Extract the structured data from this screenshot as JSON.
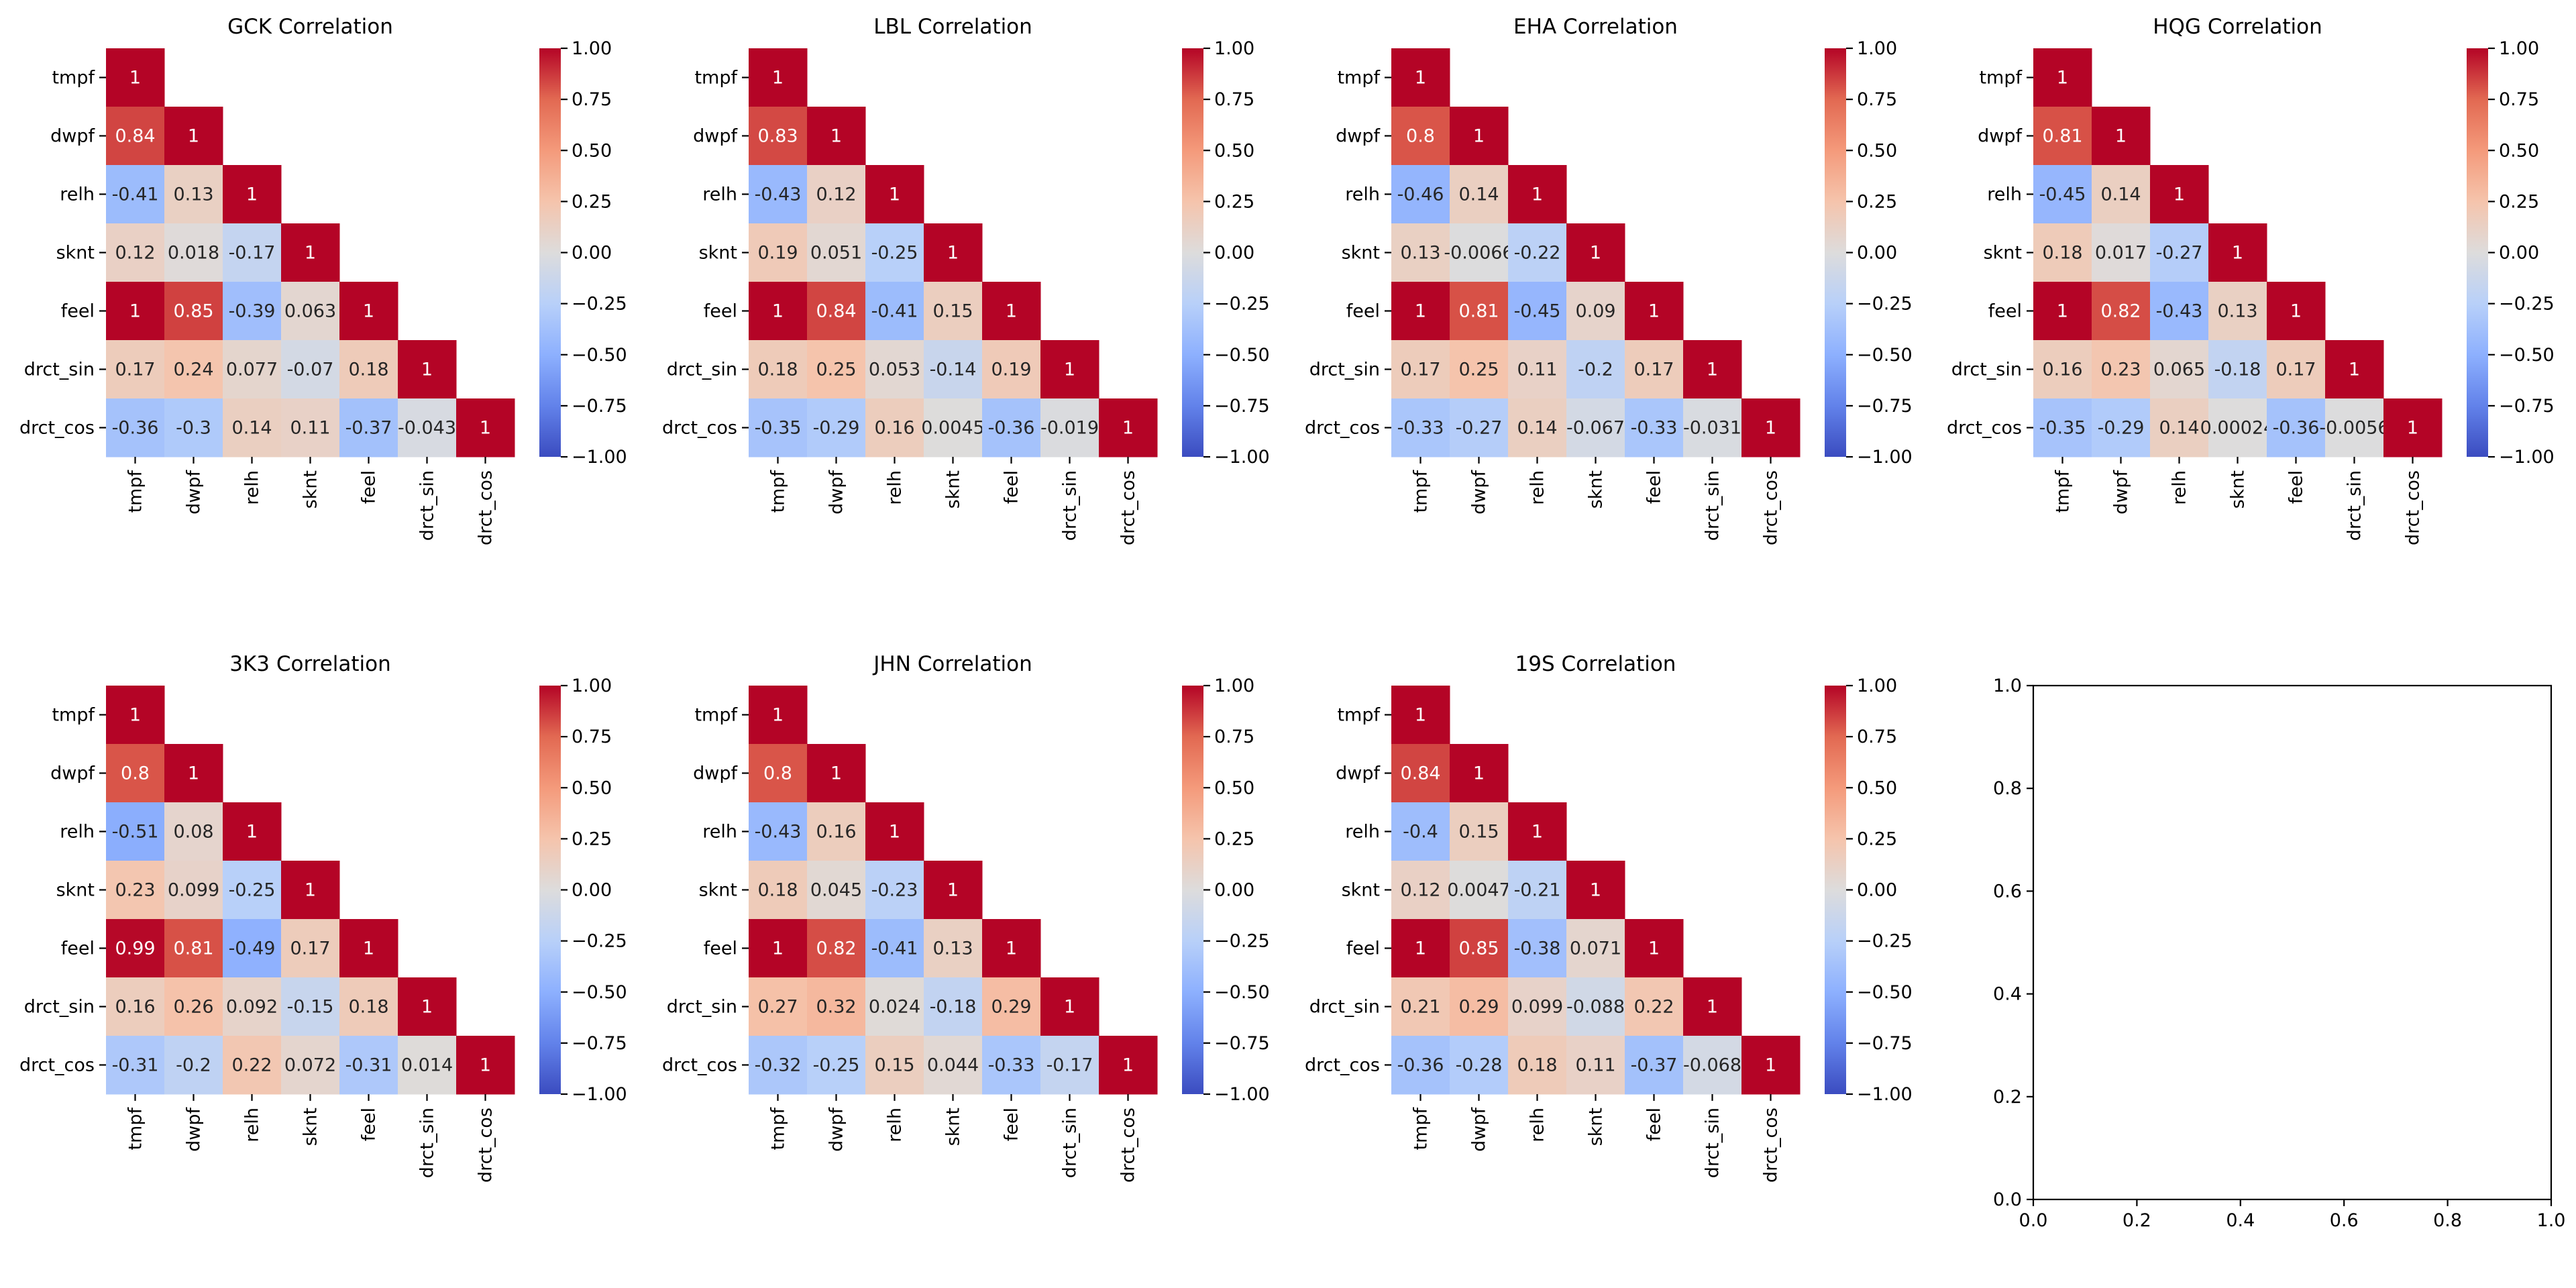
{
  "chart_data": [
    {
      "type": "heatmap",
      "title": "GCK Correlation",
      "categories": [
        "tmpf",
        "dwpf",
        "relh",
        "sknt",
        "feel",
        "drct_sin",
        "drct_cos"
      ],
      "mask": "upper-triangle",
      "matrix_lower": [
        [
          "1"
        ],
        [
          "0.84",
          "1"
        ],
        [
          "-0.41",
          "0.13",
          "1"
        ],
        [
          "0.12",
          "0.018",
          "-0.17",
          "1"
        ],
        [
          "1",
          "0.85",
          "-0.39",
          "0.063",
          "1"
        ],
        [
          "0.17",
          "0.24",
          "0.077",
          "-0.07",
          "0.18",
          "1"
        ],
        [
          "-0.36",
          "-0.3",
          "0.14",
          "0.11",
          "-0.37",
          "-0.043",
          "1"
        ]
      ],
      "colormap": "coolwarm",
      "vmin": -1,
      "vmax": 1,
      "colorbar_ticks": [
        "1.00",
        "0.75",
        "0.50",
        "0.25",
        "0.00",
        "−0.25",
        "−0.50",
        "−0.75",
        "−1.00"
      ]
    },
    {
      "type": "heatmap",
      "title": "LBL Correlation",
      "categories": [
        "tmpf",
        "dwpf",
        "relh",
        "sknt",
        "feel",
        "drct_sin",
        "drct_cos"
      ],
      "mask": "upper-triangle",
      "matrix_lower": [
        [
          "1"
        ],
        [
          "0.83",
          "1"
        ],
        [
          "-0.43",
          "0.12",
          "1"
        ],
        [
          "0.19",
          "0.051",
          "-0.25",
          "1"
        ],
        [
          "1",
          "0.84",
          "-0.41",
          "0.15",
          "1"
        ],
        [
          "0.18",
          "0.25",
          "0.053",
          "-0.14",
          "0.19",
          "1"
        ],
        [
          "-0.35",
          "-0.29",
          "0.16",
          "0.0045",
          "-0.36",
          "-0.019",
          "1"
        ]
      ],
      "colormap": "coolwarm",
      "vmin": -1,
      "vmax": 1,
      "colorbar_ticks": [
        "1.00",
        "0.75",
        "0.50",
        "0.25",
        "0.00",
        "−0.25",
        "−0.50",
        "−0.75",
        "−1.00"
      ]
    },
    {
      "type": "heatmap",
      "title": "EHA Correlation",
      "categories": [
        "tmpf",
        "dwpf",
        "relh",
        "sknt",
        "feel",
        "drct_sin",
        "drct_cos"
      ],
      "mask": "upper-triangle",
      "matrix_lower": [
        [
          "1"
        ],
        [
          "0.8",
          "1"
        ],
        [
          "-0.46",
          "0.14",
          "1"
        ],
        [
          "0.13",
          "-0.0066",
          "-0.22",
          "1"
        ],
        [
          "1",
          "0.81",
          "-0.45",
          "0.09",
          "1"
        ],
        [
          "0.17",
          "0.25",
          "0.11",
          "-0.2",
          "0.17",
          "1"
        ],
        [
          "-0.33",
          "-0.27",
          "0.14",
          "-0.067",
          "-0.33",
          "-0.031",
          "1"
        ]
      ],
      "colormap": "coolwarm",
      "vmin": -1,
      "vmax": 1,
      "colorbar_ticks": [
        "1.00",
        "0.75",
        "0.50",
        "0.25",
        "0.00",
        "−0.25",
        "−0.50",
        "−0.75",
        "−1.00"
      ]
    },
    {
      "type": "heatmap",
      "title": "HQG Correlation",
      "categories": [
        "tmpf",
        "dwpf",
        "relh",
        "sknt",
        "feel",
        "drct_sin",
        "drct_cos"
      ],
      "mask": "upper-triangle",
      "matrix_lower": [
        [
          "1"
        ],
        [
          "0.81",
          "1"
        ],
        [
          "-0.45",
          "0.14",
          "1"
        ],
        [
          "0.18",
          "0.017",
          "-0.27",
          "1"
        ],
        [
          "1",
          "0.82",
          "-0.43",
          "0.13",
          "1"
        ],
        [
          "0.16",
          "0.23",
          "0.065",
          "-0.18",
          "0.17",
          "1"
        ],
        [
          "-0.35",
          "-0.29",
          "0.14",
          "0.00024",
          "-0.36",
          "-0.0056",
          "1"
        ]
      ],
      "colormap": "coolwarm",
      "vmin": -1,
      "vmax": 1,
      "colorbar_ticks": [
        "1.00",
        "0.75",
        "0.50",
        "0.25",
        "0.00",
        "−0.25",
        "−0.50",
        "−0.75",
        "−1.00"
      ]
    },
    {
      "type": "heatmap",
      "title": "3K3 Correlation",
      "categories": [
        "tmpf",
        "dwpf",
        "relh",
        "sknt",
        "feel",
        "drct_sin",
        "drct_cos"
      ],
      "mask": "upper-triangle",
      "matrix_lower": [
        [
          "1"
        ],
        [
          "0.8",
          "1"
        ],
        [
          "-0.51",
          "0.08",
          "1"
        ],
        [
          "0.23",
          "0.099",
          "-0.25",
          "1"
        ],
        [
          "0.99",
          "0.81",
          "-0.49",
          "0.17",
          "1"
        ],
        [
          "0.16",
          "0.26",
          "0.092",
          "-0.15",
          "0.18",
          "1"
        ],
        [
          "-0.31",
          "-0.2",
          "0.22",
          "0.072",
          "-0.31",
          "0.014",
          "1"
        ]
      ],
      "colormap": "coolwarm",
      "vmin": -1,
      "vmax": 1,
      "colorbar_ticks": [
        "1.00",
        "0.75",
        "0.50",
        "0.25",
        "0.00",
        "−0.25",
        "−0.50",
        "−0.75",
        "−1.00"
      ]
    },
    {
      "type": "heatmap",
      "title": "JHN Correlation",
      "categories": [
        "tmpf",
        "dwpf",
        "relh",
        "sknt",
        "feel",
        "drct_sin",
        "drct_cos"
      ],
      "mask": "upper-triangle",
      "matrix_lower": [
        [
          "1"
        ],
        [
          "0.8",
          "1"
        ],
        [
          "-0.43",
          "0.16",
          "1"
        ],
        [
          "0.18",
          "0.045",
          "-0.23",
          "1"
        ],
        [
          "1",
          "0.82",
          "-0.41",
          "0.13",
          "1"
        ],
        [
          "0.27",
          "0.32",
          "0.024",
          "-0.18",
          "0.29",
          "1"
        ],
        [
          "-0.32",
          "-0.25",
          "0.15",
          "0.044",
          "-0.33",
          "-0.17",
          "1"
        ]
      ],
      "colormap": "coolwarm",
      "vmin": -1,
      "vmax": 1,
      "colorbar_ticks": [
        "1.00",
        "0.75",
        "0.50",
        "0.25",
        "0.00",
        "−0.25",
        "−0.50",
        "−0.75",
        "−1.00"
      ]
    },
    {
      "type": "heatmap",
      "title": "19S Correlation",
      "categories": [
        "tmpf",
        "dwpf",
        "relh",
        "sknt",
        "feel",
        "drct_sin",
        "drct_cos"
      ],
      "mask": "upper-triangle",
      "matrix_lower": [
        [
          "1"
        ],
        [
          "0.84",
          "1"
        ],
        [
          "-0.4",
          "0.15",
          "1"
        ],
        [
          "0.12",
          "0.0047",
          "-0.21",
          "1"
        ],
        [
          "1",
          "0.85",
          "-0.38",
          "0.071",
          "1"
        ],
        [
          "0.21",
          "0.29",
          "0.099",
          "-0.088",
          "0.22",
          "1"
        ],
        [
          "-0.36",
          "-0.28",
          "0.18",
          "0.11",
          "-0.37",
          "-0.068",
          "1"
        ]
      ],
      "colormap": "coolwarm",
      "vmin": -1,
      "vmax": 1,
      "colorbar_ticks": [
        "1.00",
        "0.75",
        "0.50",
        "0.25",
        "0.00",
        "−0.25",
        "−0.50",
        "−0.75",
        "−1.00"
      ]
    },
    {
      "type": "line",
      "title": "",
      "series": [],
      "xlim": [
        0,
        1
      ],
      "ylim": [
        0,
        1
      ],
      "xticks": [
        "0.0",
        "0.2",
        "0.4",
        "0.6",
        "0.8",
        "1.0"
      ],
      "yticks": [
        "0.0",
        "0.2",
        "0.4",
        "0.6",
        "0.8",
        "1.0"
      ]
    }
  ]
}
